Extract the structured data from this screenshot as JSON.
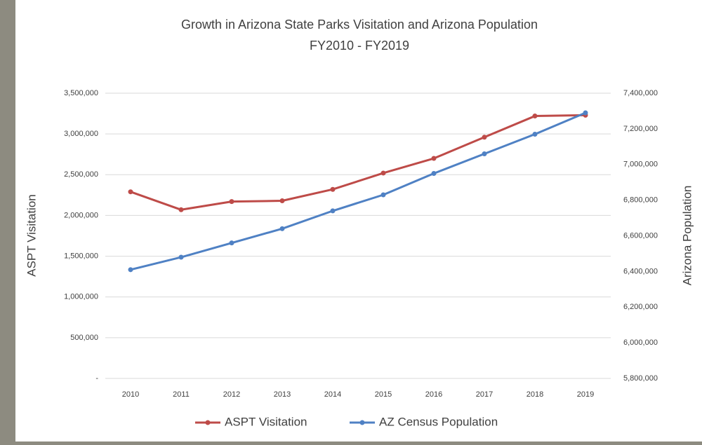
{
  "chart_data": {
    "type": "line",
    "title": "Growth in Arizona State Parks Visitation and Arizona Population",
    "subtitle": "FY2010 - FY2019",
    "y_label": "ASPT Visitation",
    "y2_label": "Arizona Population",
    "categories": [
      "2010",
      "2011",
      "2012",
      "2013",
      "2014",
      "2015",
      "2016",
      "2017",
      "2018",
      "2019"
    ],
    "series": [
      {
        "name": "ASPT Visitation",
        "color": "#be4b48",
        "values": [
          2290000,
          2070000,
          2170000,
          2180000,
          2320000,
          2520000,
          2700000,
          2960000,
          3220000,
          3230000
        ]
      },
      {
        "name": "AZ Census Population",
        "color": "#4f81c4",
        "axis": "y2",
        "values": [
          6410000,
          6480000,
          6560000,
          6640000,
          6740000,
          6830000,
          6950000,
          7060000,
          7170000,
          7290000
        ]
      }
    ],
    "ylim": [
      0,
      3500000
    ],
    "yticks": [
      {
        "value": 0,
        "label": "-"
      },
      {
        "value": 500000,
        "label": "500,000"
      },
      {
        "value": 1000000,
        "label": "1,000,000"
      },
      {
        "value": 1500000,
        "label": "1,500,000"
      },
      {
        "value": 2000000,
        "label": "2,000,000"
      },
      {
        "value": 2500000,
        "label": "2,500,000"
      },
      {
        "value": 3000000,
        "label": "3,000,000"
      },
      {
        "value": 3500000,
        "label": "3,500,000"
      }
    ],
    "y2lim": [
      5800000,
      7400000
    ],
    "y2ticks": [
      {
        "value": 5800000,
        "label": "5,800,000"
      },
      {
        "value": 6000000,
        "label": "6,000,000"
      },
      {
        "value": 6200000,
        "label": "6,200,000"
      },
      {
        "value": 6400000,
        "label": "6,400,000"
      },
      {
        "value": 6600000,
        "label": "6,600,000"
      },
      {
        "value": 6800000,
        "label": "6,800,000"
      },
      {
        "value": 7000000,
        "label": "7,000,000"
      },
      {
        "value": 7200000,
        "label": "7,200,000"
      },
      {
        "value": 7400000,
        "label": "7,400,000"
      }
    ],
    "grid": true
  }
}
